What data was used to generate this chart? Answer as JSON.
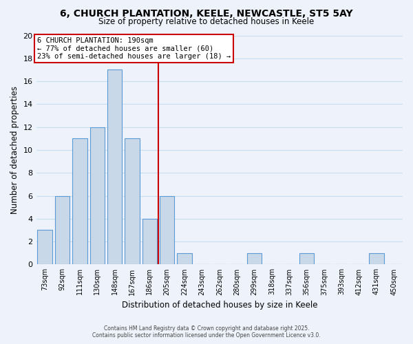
{
  "title": "6, CHURCH PLANTATION, KEELE, NEWCASTLE, ST5 5AY",
  "subtitle": "Size of property relative to detached houses in Keele",
  "xlabel": "Distribution of detached houses by size in Keele",
  "ylabel": "Number of detached properties",
  "categories": [
    "73sqm",
    "92sqm",
    "111sqm",
    "130sqm",
    "148sqm",
    "167sqm",
    "186sqm",
    "205sqm",
    "224sqm",
    "243sqm",
    "262sqm",
    "280sqm",
    "299sqm",
    "318sqm",
    "337sqm",
    "356sqm",
    "375sqm",
    "393sqm",
    "412sqm",
    "431sqm",
    "450sqm"
  ],
  "values": [
    3,
    6,
    11,
    12,
    17,
    11,
    4,
    6,
    1,
    0,
    0,
    0,
    1,
    0,
    0,
    1,
    0,
    0,
    0,
    1,
    0
  ],
  "bar_color": "#c8d8e8",
  "bar_edgecolor": "#5b9bd5",
  "ylim": [
    0,
    20
  ],
  "yticks": [
    0,
    2,
    4,
    6,
    8,
    10,
    12,
    14,
    16,
    18,
    20
  ],
  "red_line_x": 6.5,
  "annotation_title": "6 CHURCH PLANTATION: 190sqm",
  "annotation_line1": "← 77% of detached houses are smaller (60)",
  "annotation_line2": "23% of semi-detached houses are larger (18) →",
  "annotation_box_color": "#ffffff",
  "annotation_box_edgecolor": "#cc0000",
  "red_line_color": "#cc0000",
  "grid_color": "#c8dcf0",
  "background_color": "#eef3fb",
  "footer1": "Contains HM Land Registry data © Crown copyright and database right 2025.",
  "footer2": "Contains public sector information licensed under the Open Government Licence v3.0."
}
